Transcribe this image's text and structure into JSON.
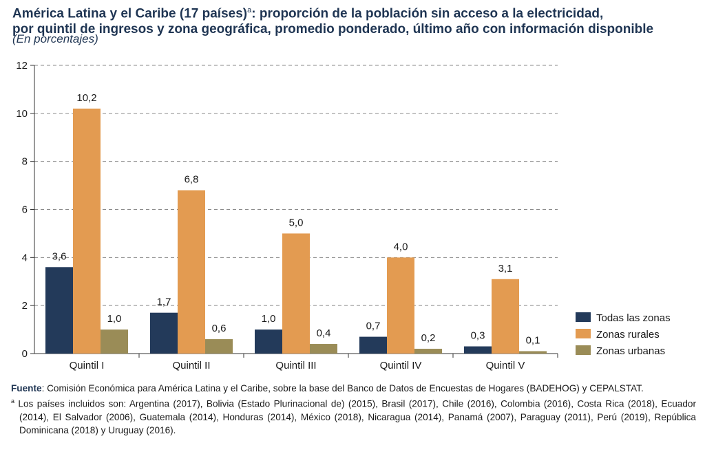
{
  "title": {
    "line1_pre": "América Latina y el Caribe (17 países)",
    "line1_sup": "a",
    "line1_post": ": proporción de la población sin acceso a la electricidad,",
    "line2": "por quintil de ingresos y zona geográfica, promedio ponderado, último año con información disponible",
    "subtitle": "(En porcentajes)"
  },
  "chart_data": {
    "type": "bar",
    "categories": [
      "Quintil I",
      "Quintil II",
      "Quintil III",
      "Quintil IV",
      "Quintil V"
    ],
    "series": [
      {
        "name": "Todas las zonas",
        "color": "#233a5a",
        "values": [
          3.6,
          1.7,
          1.0,
          0.7,
          0.3
        ],
        "labels": [
          "3,6",
          "1,7",
          "1,0",
          "0,7",
          "0,3"
        ]
      },
      {
        "name": "Zonas rurales",
        "color": "#e39b51",
        "values": [
          10.2,
          6.8,
          5.0,
          4.0,
          3.1
        ],
        "labels": [
          "10,2",
          "6,8",
          "5,0",
          "4,0",
          "3,1"
        ]
      },
      {
        "name": "Zonas urbanas",
        "color": "#9a8c57",
        "values": [
          1.0,
          0.6,
          0.4,
          0.2,
          0.1
        ],
        "labels": [
          "1,0",
          "0,6",
          "0,4",
          "0,2",
          "0,1"
        ]
      }
    ],
    "ylim": [
      0,
      12
    ],
    "yticks": [
      0,
      2,
      4,
      6,
      8,
      10,
      12
    ],
    "grid": true,
    "legend_position": "bottom-right",
    "xlabel": "",
    "ylabel": ""
  },
  "footer": {
    "source_label": "Fuente",
    "source_text": ": Comisión Económica para América Latina y el Caribe, sobre la base del Banco de Datos de Encuestas de Hogares (BADEHOG) y CEPALSTAT.",
    "note_mark": "a",
    "note_text": " Los países incluidos son: Argentina (2017), Bolivia (Estado Plurinacional de) (2015), Brasil (2017), Chile (2016), Colombia (2016), Costa Rica (2018), Ecuador (2014), El Salvador (2006), Guatemala (2014), Honduras (2014), México (2018), Nicaragua (2014), Panamá (2007), Paraguay (2011), Perú (2019), República Dominicana (2018) y Uruguay (2016)."
  }
}
